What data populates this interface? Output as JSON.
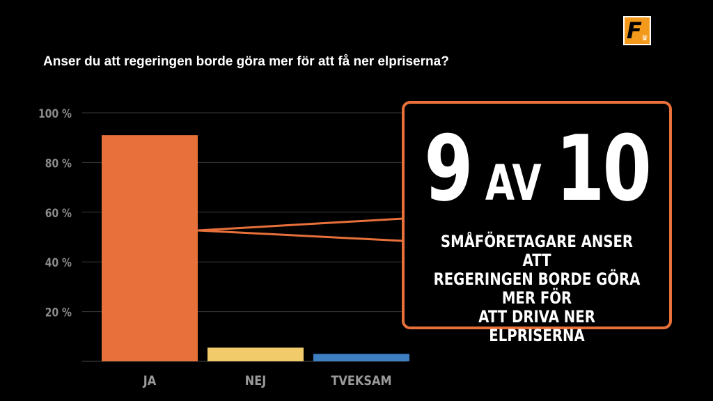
{
  "header": {
    "question": "Anser du att regeringen borde göra mer för att få ner elpriserna?"
  },
  "logo": {
    "letter": "F",
    "icon": "crown-icon",
    "color": "#f39a1c"
  },
  "callout": {
    "number_left": "9",
    "connector": "AV",
    "number_right": "10",
    "lines": [
      "SMÅFÖRETAGARE ANSER ATT",
      "REGERINGEN BORDE GÖRA MER FÖR",
      "ATT DRIVA NER ELPRISERNA"
    ],
    "border_color": "#e8703a"
  },
  "chart_data": {
    "type": "bar",
    "title": "Anser du att regeringen borde göra mer för att få ner elpriserna?",
    "categories": [
      "JA",
      "NEJ",
      "TVEKSAM"
    ],
    "values": [
      91,
      5.5,
      3
    ],
    "colors": [
      "#e8703a",
      "#f1ca6a",
      "#3d7fc1"
    ],
    "ylim": [
      0,
      100
    ],
    "yticks": [
      20,
      40,
      60,
      80,
      100
    ],
    "ytick_labels": [
      "20 %",
      "40 %",
      "60 %",
      "80 %",
      "100 %"
    ],
    "grid": true,
    "xlabel": "",
    "ylabel": ""
  }
}
